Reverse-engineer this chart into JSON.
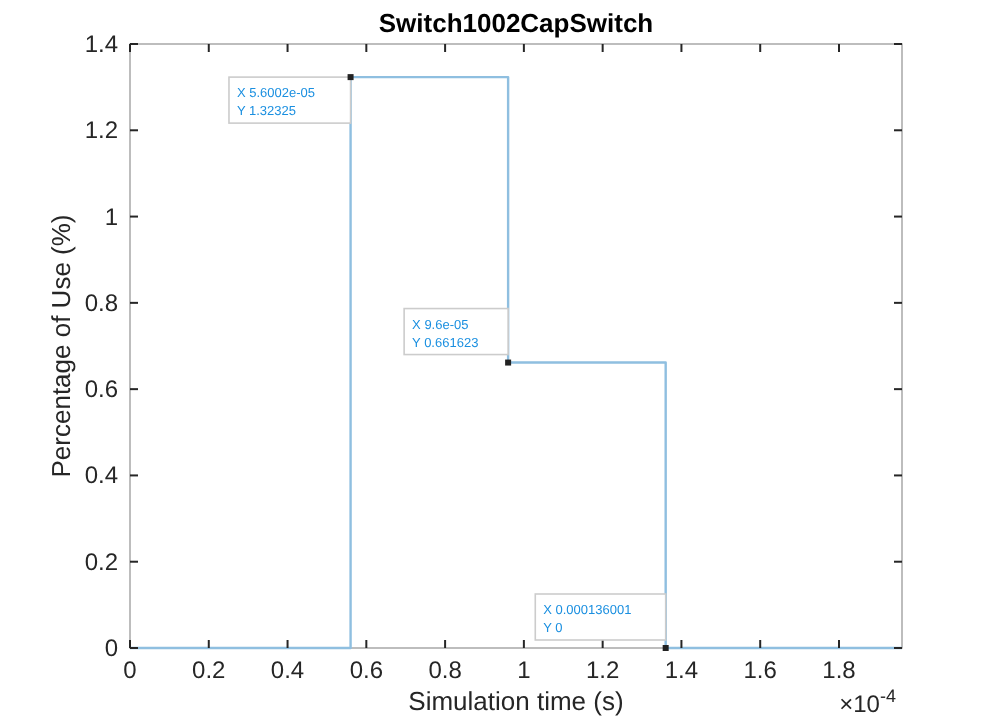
{
  "chart_data": {
    "type": "step",
    "title": "Switch1002CapSwitch",
    "xlabel": "Simulation time (s)",
    "ylabel": "Percentage of Use (%)",
    "x": [
      0,
      0.56002,
      0.96,
      1.36001,
      1.96
    ],
    "series": [
      {
        "color": "#8fbfe0",
        "values": [
          0,
          1.32325,
          0.661623,
          0,
          0
        ]
      }
    ],
    "xlim": [
      0,
      1.96
    ],
    "xticks": [
      0,
      0.2,
      0.4,
      0.6,
      0.8,
      1,
      1.2,
      1.4,
      1.6,
      1.8
    ],
    "ylim": [
      0,
      1.4
    ],
    "yticks": [
      0,
      0.2,
      0.4,
      0.6,
      0.8,
      1,
      1.2,
      1.4
    ],
    "grid": false,
    "annotations": [
      "×10$^{-4}$",
      {
        "text": "X 5.6002e-05\nY 1.32325",
        "x": 0.56002,
        "y": 1.32325
      },
      {
        "text": "X 9.6e-05\nY 0.661623",
        "x": 0.96,
        "y": 0.661623
      },
      {
        "text": "X 0.000136001\nY 0",
        "x": 1.36001,
        "y": 0
      }
    ]
  }
}
